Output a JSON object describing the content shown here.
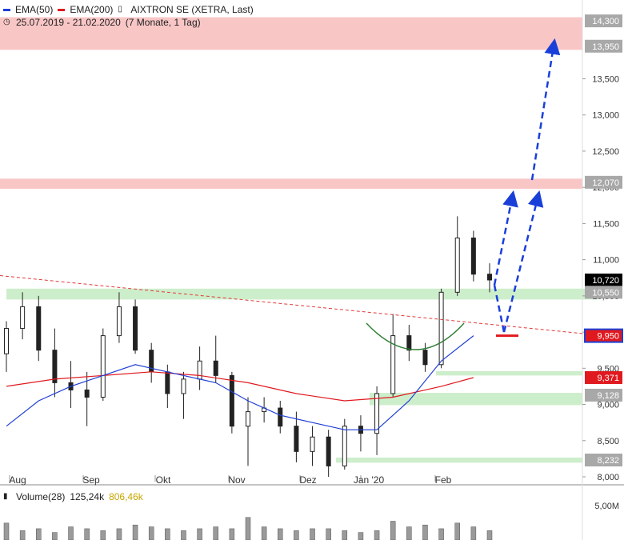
{
  "legend": {
    "ema50_label": "EMA(50)",
    "ema200_label": "EMA(200)",
    "instrument": "AIXTRON SE (XETRA, Last)",
    "period": "25.07.2019 - 21.02.2020",
    "range_note": "(7 Monate, 1 Tag)"
  },
  "volume_legend": {
    "label": "Volume(28)",
    "value_current": "125,24k",
    "value_avg": "806,46k"
  },
  "colors": {
    "ema50": "#1f3fd6",
    "ema200": "#e0191f",
    "candle": "#222222",
    "support_zone": "#cdeecb",
    "resistance_zone": "#f9c6c6",
    "arrow": "#1a3fd9",
    "trendline": "#e03a3a",
    "cup": "#2e7d32"
  },
  "chart_data": {
    "type": "candlestick",
    "x_labels": [
      "Aug",
      "Sep",
      "Okt",
      "Nov",
      "Dez",
      "Jan '20",
      "Feb"
    ],
    "y_ticks": [
      "8,000",
      "8,500",
      "9,000",
      "9,500",
      "10,000",
      "10,500",
      "11,000",
      "11,500",
      "12,000",
      "12,500",
      "13,000",
      "13,500",
      "13,950",
      "14,300"
    ],
    "ylim": [
      8000,
      14500
    ],
    "levels": [
      {
        "label": "14,300",
        "value": 14300,
        "kind": "resistance"
      },
      {
        "label": "13,950",
        "value": 13950,
        "kind": "resistance"
      },
      {
        "label": "12,070",
        "value": 12070,
        "kind": "resistance"
      },
      {
        "label": "10,720",
        "value": 10720,
        "kind": "last"
      },
      {
        "label": "10,550",
        "value": 10550,
        "kind": "support"
      },
      {
        "label": "9,950",
        "value": 9950,
        "kind": "ema50"
      },
      {
        "label": "9,371",
        "value": 9371,
        "kind": "ema200"
      },
      {
        "label": "9,128",
        "value": 9128,
        "kind": "support"
      },
      {
        "label": "8,232",
        "value": 8232,
        "kind": "support"
      }
    ],
    "ohlc_approx": [
      {
        "date": "2019-07-25",
        "o": 9700,
        "h": 10150,
        "l": 9450,
        "c": 10050
      },
      {
        "date": "2019-08-01",
        "o": 10050,
        "h": 10550,
        "l": 9900,
        "c": 10350
      },
      {
        "date": "2019-08-08",
        "o": 10350,
        "h": 10500,
        "l": 9600,
        "c": 9750
      },
      {
        "date": "2019-08-15",
        "o": 9750,
        "h": 10050,
        "l": 9100,
        "c": 9300
      },
      {
        "date": "2019-08-22",
        "o": 9300,
        "h": 9600,
        "l": 8950,
        "c": 9200
      },
      {
        "date": "2019-08-29",
        "o": 9200,
        "h": 9450,
        "l": 8700,
        "c": 9100
      },
      {
        "date": "2019-09-05",
        "o": 9100,
        "h": 10050,
        "l": 9050,
        "c": 9950
      },
      {
        "date": "2019-09-12",
        "o": 9950,
        "h": 10550,
        "l": 9850,
        "c": 10350
      },
      {
        "date": "2019-09-19",
        "o": 10350,
        "h": 10450,
        "l": 9700,
        "c": 9750
      },
      {
        "date": "2019-09-26",
        "o": 9750,
        "h": 9850,
        "l": 9300,
        "c": 9450
      },
      {
        "date": "2019-10-03",
        "o": 9450,
        "h": 9550,
        "l": 8950,
        "c": 9150
      },
      {
        "date": "2019-10-10",
        "o": 9150,
        "h": 9450,
        "l": 8800,
        "c": 9350
      },
      {
        "date": "2019-10-17",
        "o": 9350,
        "h": 9800,
        "l": 9200,
        "c": 9600
      },
      {
        "date": "2019-10-24",
        "o": 9600,
        "h": 9950,
        "l": 9300,
        "c": 9400
      },
      {
        "date": "2019-10-31",
        "o": 9400,
        "h": 9450,
        "l": 8600,
        "c": 8700
      },
      {
        "date": "2019-11-07",
        "o": 8700,
        "h": 9100,
        "l": 8150,
        "c": 8900
      },
      {
        "date": "2019-11-14",
        "o": 8900,
        "h": 9100,
        "l": 8750,
        "c": 8950
      },
      {
        "date": "2019-11-21",
        "o": 8950,
        "h": 9050,
        "l": 8600,
        "c": 8700
      },
      {
        "date": "2019-11-28",
        "o": 8700,
        "h": 8900,
        "l": 8200,
        "c": 8350
      },
      {
        "date": "2019-12-05",
        "o": 8350,
        "h": 8700,
        "l": 8150,
        "c": 8550
      },
      {
        "date": "2019-12-12",
        "o": 8550,
        "h": 8650,
        "l": 8000,
        "c": 8150
      },
      {
        "date": "2019-12-19",
        "o": 8150,
        "h": 8800,
        "l": 8100,
        "c": 8700
      },
      {
        "date": "2019-12-27",
        "o": 8700,
        "h": 8850,
        "l": 8350,
        "c": 8600
      },
      {
        "date": "2020-01-03",
        "o": 8600,
        "h": 9250,
        "l": 8300,
        "c": 9150
      },
      {
        "date": "2020-01-10",
        "o": 9150,
        "h": 10250,
        "l": 9100,
        "c": 9950
      },
      {
        "date": "2020-01-17",
        "o": 9950,
        "h": 10100,
        "l": 9600,
        "c": 9750
      },
      {
        "date": "2020-01-24",
        "o": 9750,
        "h": 9850,
        "l": 9450,
        "c": 9550
      },
      {
        "date": "2020-01-31",
        "o": 9550,
        "h": 10600,
        "l": 9500,
        "c": 10550
      },
      {
        "date": "2020-02-07",
        "o": 10550,
        "h": 11600,
        "l": 10500,
        "c": 11300
      },
      {
        "date": "2020-02-14",
        "o": 11300,
        "h": 11400,
        "l": 10700,
        "c": 10800
      },
      {
        "date": "2020-02-21",
        "o": 10800,
        "h": 10950,
        "l": 10550,
        "c": 10720
      }
    ],
    "ema50_points": [
      [
        0,
        8700
      ],
      [
        2,
        9050
      ],
      [
        4,
        9250
      ],
      [
        6,
        9400
      ],
      [
        8,
        9550
      ],
      [
        9,
        9500
      ],
      [
        11,
        9400
      ],
      [
        13,
        9300
      ],
      [
        15,
        9050
      ],
      [
        17,
        8850
      ],
      [
        19,
        8750
      ],
      [
        21,
        8650
      ],
      [
        23,
        8650
      ],
      [
        25,
        9050
      ],
      [
        27,
        9600
      ],
      [
        29,
        9950
      ]
    ],
    "ema200_points": [
      [
        0,
        9250
      ],
      [
        3,
        9350
      ],
      [
        6,
        9400
      ],
      [
        9,
        9450
      ],
      [
        12,
        9400
      ],
      [
        15,
        9300
      ],
      [
        18,
        9150
      ],
      [
        21,
        9050
      ],
      [
        24,
        9100
      ],
      [
        27,
        9250
      ],
      [
        29,
        9371
      ]
    ],
    "volume_ticks": [
      "5,00M"
    ],
    "volume_values": [
      0.45,
      0.25,
      0.3,
      0.2,
      0.35,
      0.3,
      0.25,
      0.3,
      0.4,
      0.35,
      0.3,
      0.25,
      0.3,
      0.35,
      0.3,
      0.6,
      0.35,
      0.3,
      0.25,
      0.3,
      0.3,
      0.25,
      0.2,
      0.25,
      0.5,
      0.35,
      0.4,
      0.3,
      0.45,
      0.35,
      0.25
    ]
  }
}
